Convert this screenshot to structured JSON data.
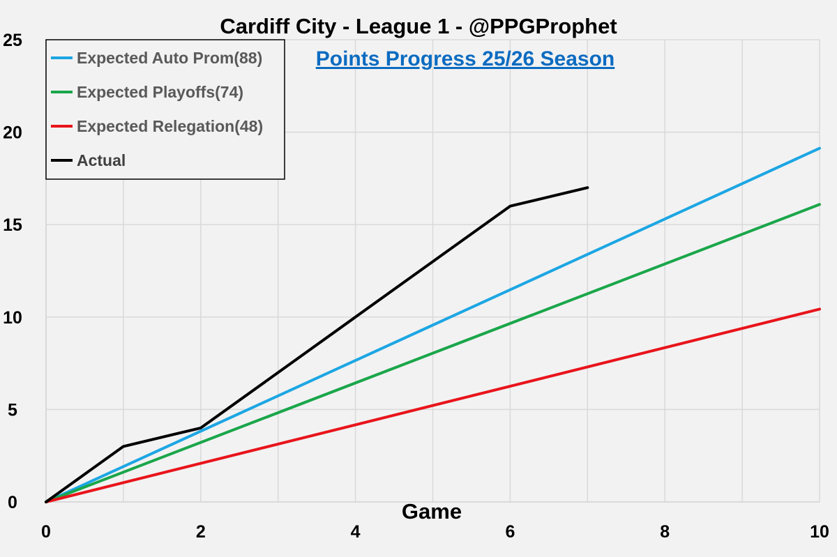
{
  "colors": {
    "background": "#f2f2f2",
    "grid": "#d9d9d9",
    "auto_prom": "#1ca6e3",
    "playoffs": "#1aa64a",
    "relegation": "#e8141b",
    "actual": "#000000",
    "subtitle": "#0b6bc1"
  },
  "chart_data": {
    "type": "line",
    "title": "Cardiff City - League 1 - @PPGProphet",
    "subtitle": "Points Progress 25/26 Season",
    "xlabel": "Game",
    "ylabel": "",
    "xlim": [
      0,
      10
    ],
    "ylim": [
      0,
      25
    ],
    "xticks": [
      0,
      2,
      4,
      6,
      8,
      10
    ],
    "yticks": [
      0,
      5,
      10,
      15,
      20,
      25
    ],
    "grid": true,
    "legend_position": "top-left",
    "series": [
      {
        "name": "Expected Auto Prom(88)",
        "color": "#1ca6e3",
        "x": [
          0,
          10
        ],
        "y": [
          0,
          19.13
        ]
      },
      {
        "name": "Expected Playoffs(74)",
        "color": "#1aa64a",
        "x": [
          0,
          10
        ],
        "y": [
          0,
          16.09
        ]
      },
      {
        "name": "Expected Relegation(48)",
        "color": "#e8141b",
        "x": [
          0,
          10
        ],
        "y": [
          0,
          10.43
        ]
      },
      {
        "name": "Actual",
        "color": "#000000",
        "x": [
          0,
          1,
          2,
          3,
          4,
          5,
          6,
          7
        ],
        "y": [
          0,
          3,
          4,
          7,
          10,
          13,
          16,
          17
        ]
      }
    ]
  }
}
